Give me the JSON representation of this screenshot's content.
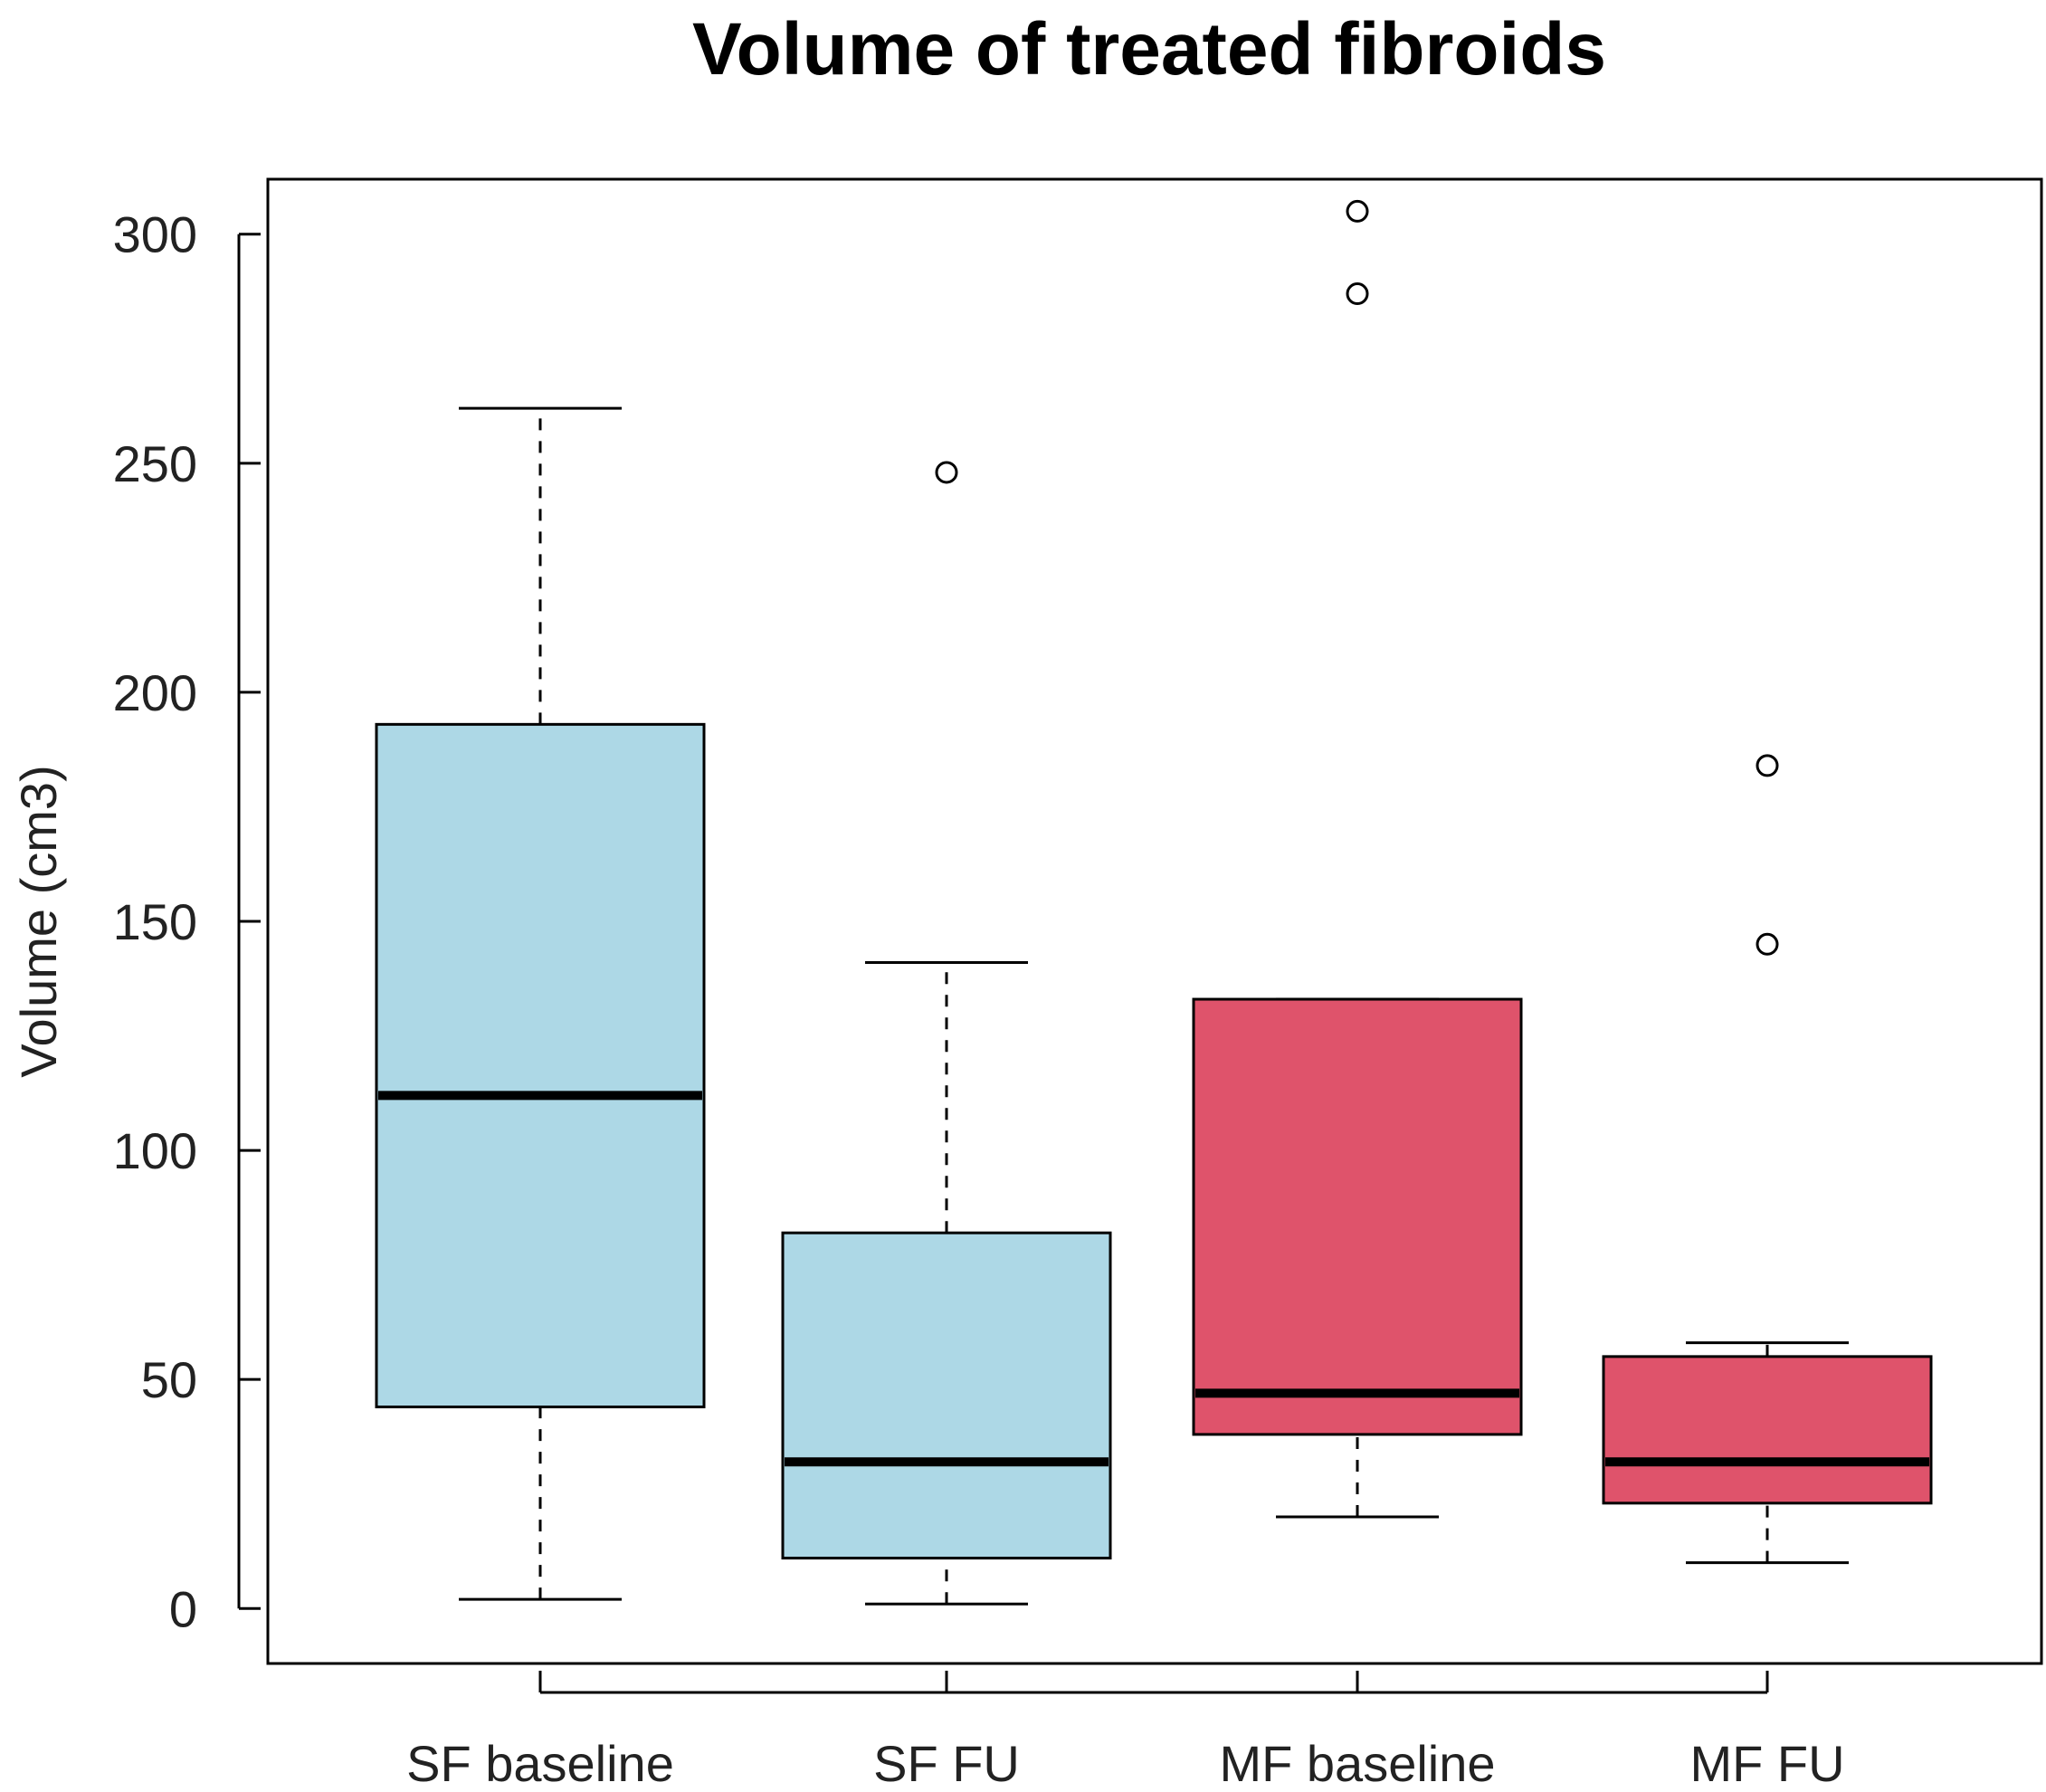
{
  "chart_data": {
    "type": "boxplot",
    "title": "Volume of treated fibroids",
    "xlabel": "",
    "ylabel": "Volume (cm3)",
    "ylim": [
      -12,
      312
    ],
    "yticks": [
      0,
      50,
      100,
      150,
      200,
      250,
      300
    ],
    "grid": false,
    "legend": "none",
    "categories": [
      "SF baseline",
      "SF FU",
      "MF baseline",
      "MF FU"
    ],
    "series": [
      {
        "name": "SF baseline",
        "color": "#add8e6",
        "whisker_low": 2,
        "q1": 44,
        "median": 112,
        "q3": 193,
        "whisker_high": 262,
        "outliers": []
      },
      {
        "name": "SF FU",
        "color": "#add8e6",
        "whisker_low": 1,
        "q1": 11,
        "median": 32,
        "q3": 82,
        "whisker_high": 141,
        "outliers": [
          248
        ]
      },
      {
        "name": "MF baseline",
        "color": "#df536b",
        "whisker_low": 20,
        "q1": 38,
        "median": 47,
        "q3": 133,
        "whisker_high": 133,
        "outliers": [
          287,
          305
        ]
      },
      {
        "name": "MF FU",
        "color": "#df536b",
        "whisker_low": 10,
        "q1": 23,
        "median": 32,
        "q3": 55,
        "whisker_high": 58,
        "outliers": [
          145,
          184
        ]
      }
    ]
  }
}
